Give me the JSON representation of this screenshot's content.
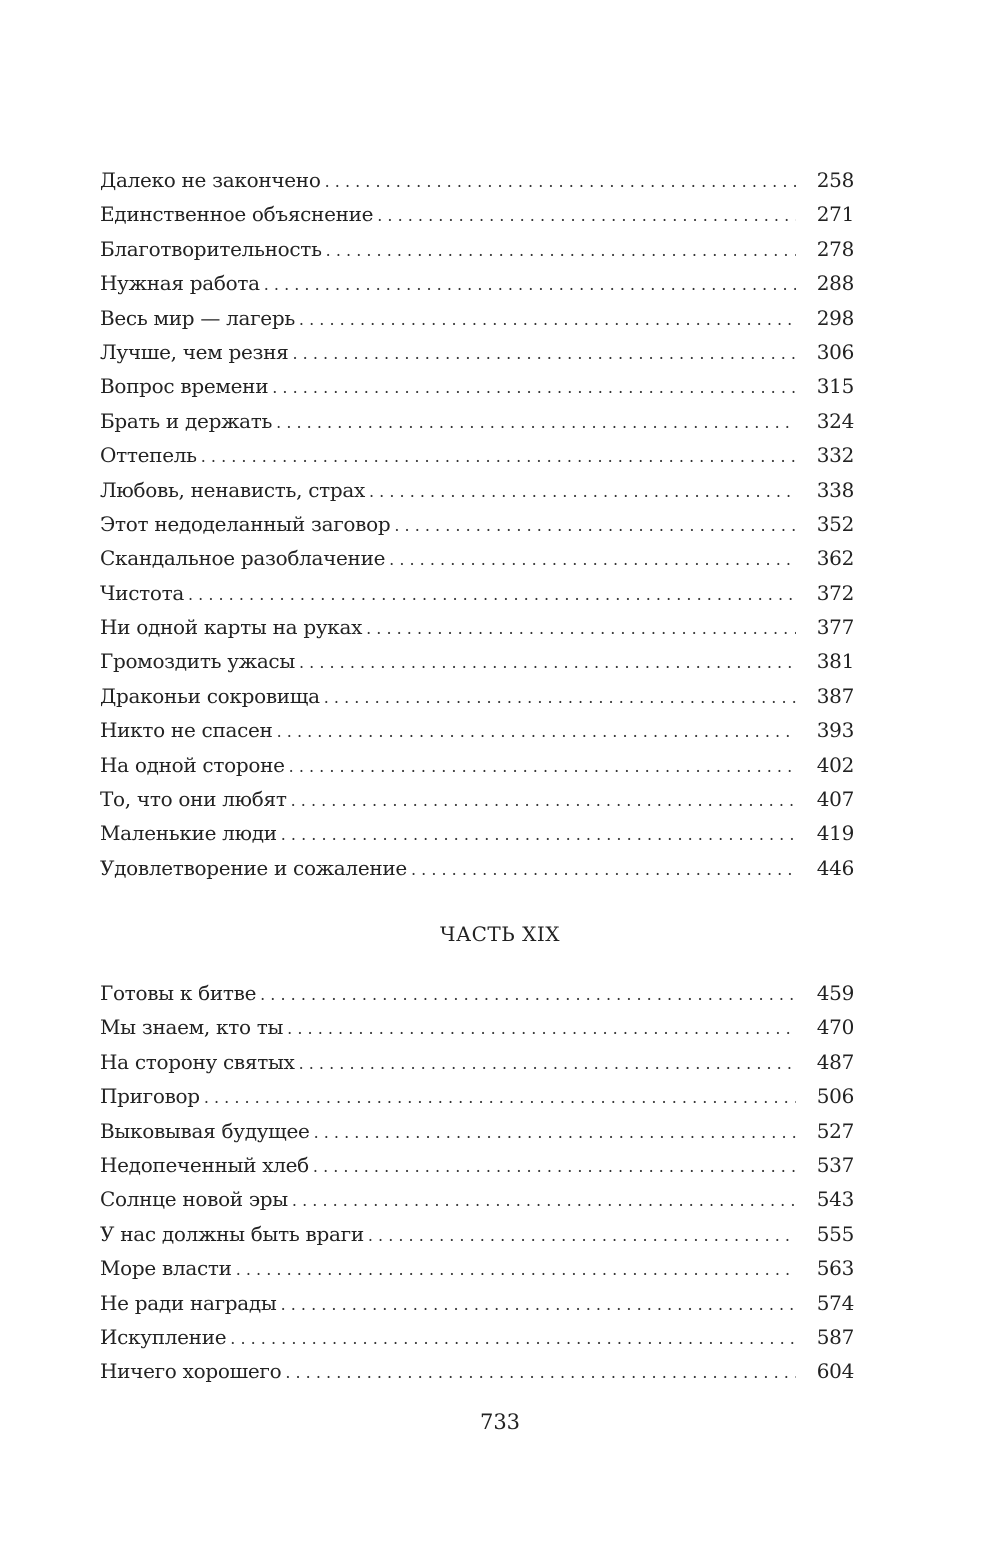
{
  "section1": {
    "entries": [
      {
        "title": "Далеко не закончено",
        "page": "258"
      },
      {
        "title": "Единственное объяснение",
        "page": "271"
      },
      {
        "title": "Благотворительность",
        "page": "278"
      },
      {
        "title": "Нужная работа",
        "page": "288"
      },
      {
        "title": "Весь мир — лагерь",
        "page": "298"
      },
      {
        "title": "Лучше, чем резня",
        "page": "306"
      },
      {
        "title": "Вопрос времени",
        "page": "315"
      },
      {
        "title": "Брать и держать",
        "page": "324"
      },
      {
        "title": "Оттепель",
        "page": "332"
      },
      {
        "title": "Любовь, ненависть, страх",
        "page": "338"
      },
      {
        "title": "Этот недоделанный заговор",
        "page": "352"
      },
      {
        "title": "Скандальное разоблачение",
        "page": "362"
      },
      {
        "title": "Чистота",
        "page": "372"
      },
      {
        "title": "Ни одной карты на руках",
        "page": "377"
      },
      {
        "title": "Громоздить ужасы",
        "page": "381"
      },
      {
        "title": "Драконьи сокровища",
        "page": "387"
      },
      {
        "title": "Никто не спасен",
        "page": "393"
      },
      {
        "title": "На одной стороне",
        "page": "402"
      },
      {
        "title": "То, что они любят",
        "page": "407"
      },
      {
        "title": "Маленькие люди",
        "page": "419"
      },
      {
        "title": "Удовлетворение и сожаление",
        "page": "446"
      }
    ]
  },
  "section2": {
    "heading": "ЧАСТЬ XIX",
    "entries": [
      {
        "title": "Готовы к битве",
        "page": "459"
      },
      {
        "title": "Мы знаем, кто ты",
        "page": "470"
      },
      {
        "title": "На сторону святых",
        "page": "487"
      },
      {
        "title": "Приговор",
        "page": "506"
      },
      {
        "title": "Выковывая будущее",
        "page": "527"
      },
      {
        "title": "Недопеченный хлеб",
        "page": "537"
      },
      {
        "title": "Солнце новой эры",
        "page": "543"
      },
      {
        "title": "У нас должны быть враги",
        "page": "555"
      },
      {
        "title": "Море власти",
        "page": "563"
      },
      {
        "title": "Не ради награды",
        "page": "574"
      },
      {
        "title": "Искупление",
        "page": "587"
      },
      {
        "title": "Ничего хорошего",
        "page": "604"
      }
    ]
  },
  "page_number": "733"
}
